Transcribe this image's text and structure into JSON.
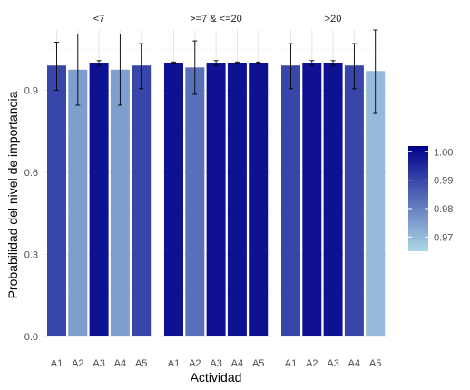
{
  "chart_data": {
    "type": "bar",
    "xlabel": "Actividad",
    "ylabel": "Probabilidad del nivel de importancia",
    "ylim": [
      0,
      1.12
    ],
    "yticks": [
      0.0,
      0.3,
      0.6,
      0.9
    ],
    "ytick_labels": [
      "0.0",
      "0.3",
      "0.6",
      "0.9"
    ],
    "grid": true,
    "legend_position": "right",
    "categories": [
      "A1",
      "A2",
      "A3",
      "A4",
      "A5"
    ],
    "facets": [
      {
        "label": "<7",
        "values": [
          0.99,
          0.975,
          0.999,
          0.975,
          0.99
        ],
        "error_low": [
          0.9,
          0.845,
          0.99,
          0.845,
          0.905
        ],
        "error_high": [
          1.075,
          1.105,
          1.008,
          1.105,
          1.07
        ]
      },
      {
        "label": ">=7 & <=20",
        "values": [
          0.999,
          0.983,
          0.999,
          0.999,
          0.999
        ],
        "error_low": [
          0.995,
          0.885,
          0.99,
          0.995,
          0.995
        ],
        "error_high": [
          1.003,
          1.08,
          1.008,
          1.003,
          1.003
        ]
      },
      {
        "label": ">20",
        "values": [
          0.99,
          0.999,
          0.999,
          0.99,
          0.97
        ],
        "error_low": [
          0.905,
          0.99,
          0.99,
          0.905,
          0.815
        ],
        "error_high": [
          1.07,
          1.008,
          1.008,
          1.07,
          1.12
        ]
      }
    ],
    "colorbar": {
      "min": 0.965,
      "max": 1.002,
      "ticks": [
        1.0,
        0.99,
        0.98,
        0.97
      ],
      "tick_labels": [
        "1.00",
        "0.99",
        "0.98",
        "0.97"
      ],
      "color_low": "#add8e6",
      "color_high": "#00008b"
    }
  }
}
